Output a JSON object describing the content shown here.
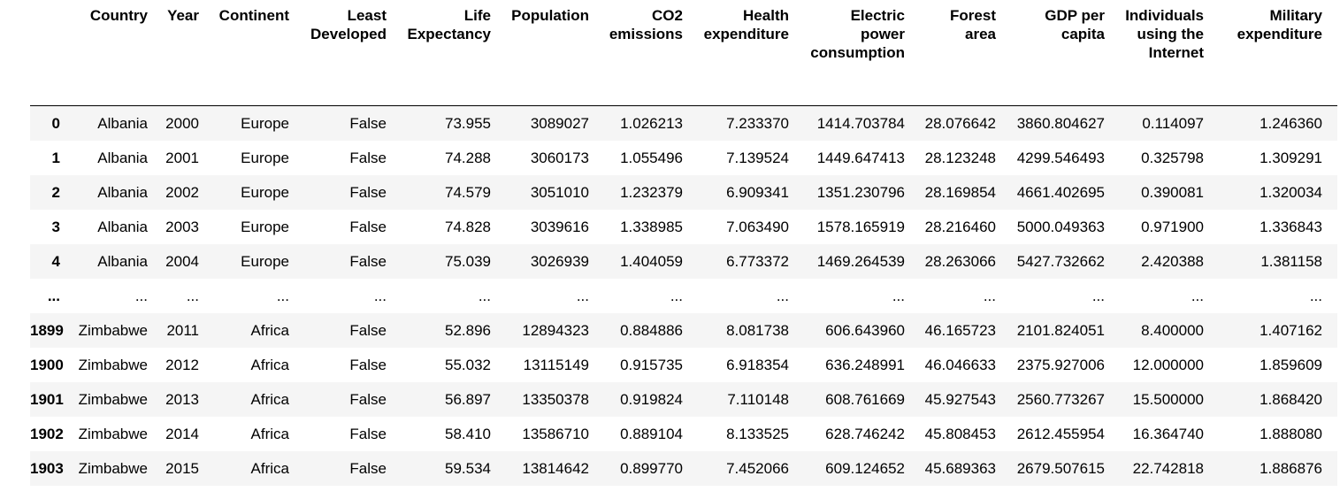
{
  "table": {
    "columns": [
      "",
      "Country",
      "Year",
      "Continent",
      "Least\nDeveloped",
      "Life\nExpectancy",
      "Population",
      "CO2\nemissions",
      "Health\nexpenditure",
      "Electric\npower\nconsumption",
      "Forest\narea",
      "GDP per\ncapita",
      "Individuals\nusing the\nInternet",
      "Military\nexpenditure"
    ],
    "rows": [
      [
        "0",
        "Albania",
        "2000",
        "Europe",
        "False",
        "73.955",
        "3089027",
        "1.026213",
        "7.233370",
        "1414.703784",
        "28.076642",
        "3860.804627",
        "0.114097",
        "1.246360"
      ],
      [
        "1",
        "Albania",
        "2001",
        "Europe",
        "False",
        "74.288",
        "3060173",
        "1.055496",
        "7.139524",
        "1449.647413",
        "28.123248",
        "4299.546493",
        "0.325798",
        "1.309291"
      ],
      [
        "2",
        "Albania",
        "2002",
        "Europe",
        "False",
        "74.579",
        "3051010",
        "1.232379",
        "6.909341",
        "1351.230796",
        "28.169854",
        "4661.402695",
        "0.390081",
        "1.320034"
      ],
      [
        "3",
        "Albania",
        "2003",
        "Europe",
        "False",
        "74.828",
        "3039616",
        "1.338985",
        "7.063490",
        "1578.165919",
        "28.216460",
        "5000.049363",
        "0.971900",
        "1.336843"
      ],
      [
        "4",
        "Albania",
        "2004",
        "Europe",
        "False",
        "75.039",
        "3026939",
        "1.404059",
        "6.773372",
        "1469.264539",
        "28.263066",
        "5427.732662",
        "2.420388",
        "1.381158"
      ],
      [
        "...",
        "...",
        "...",
        "...",
        "...",
        "...",
        "...",
        "...",
        "...",
        "...",
        "...",
        "...",
        "...",
        "..."
      ],
      [
        "1899",
        "Zimbabwe",
        "2011",
        "Africa",
        "False",
        "52.896",
        "12894323",
        "0.884886",
        "8.081738",
        "606.643960",
        "46.165723",
        "2101.824051",
        "8.400000",
        "1.407162"
      ],
      [
        "1900",
        "Zimbabwe",
        "2012",
        "Africa",
        "False",
        "55.032",
        "13115149",
        "0.915735",
        "6.918354",
        "636.248991",
        "46.046633",
        "2375.927006",
        "12.000000",
        "1.859609"
      ],
      [
        "1901",
        "Zimbabwe",
        "2013",
        "Africa",
        "False",
        "56.897",
        "13350378",
        "0.919824",
        "7.110148",
        "608.761669",
        "45.927543",
        "2560.773267",
        "15.500000",
        "1.868420"
      ],
      [
        "1902",
        "Zimbabwe",
        "2014",
        "Africa",
        "False",
        "58.410",
        "13586710",
        "0.889104",
        "8.133525",
        "628.746242",
        "45.808453",
        "2612.455954",
        "16.364740",
        "1.888080"
      ],
      [
        "1903",
        "Zimbabwe",
        "2015",
        "Africa",
        "False",
        "59.534",
        "13814642",
        "0.899770",
        "7.452066",
        "609.124652",
        "45.689363",
        "2679.507615",
        "22.742818",
        "1.886876"
      ]
    ]
  }
}
